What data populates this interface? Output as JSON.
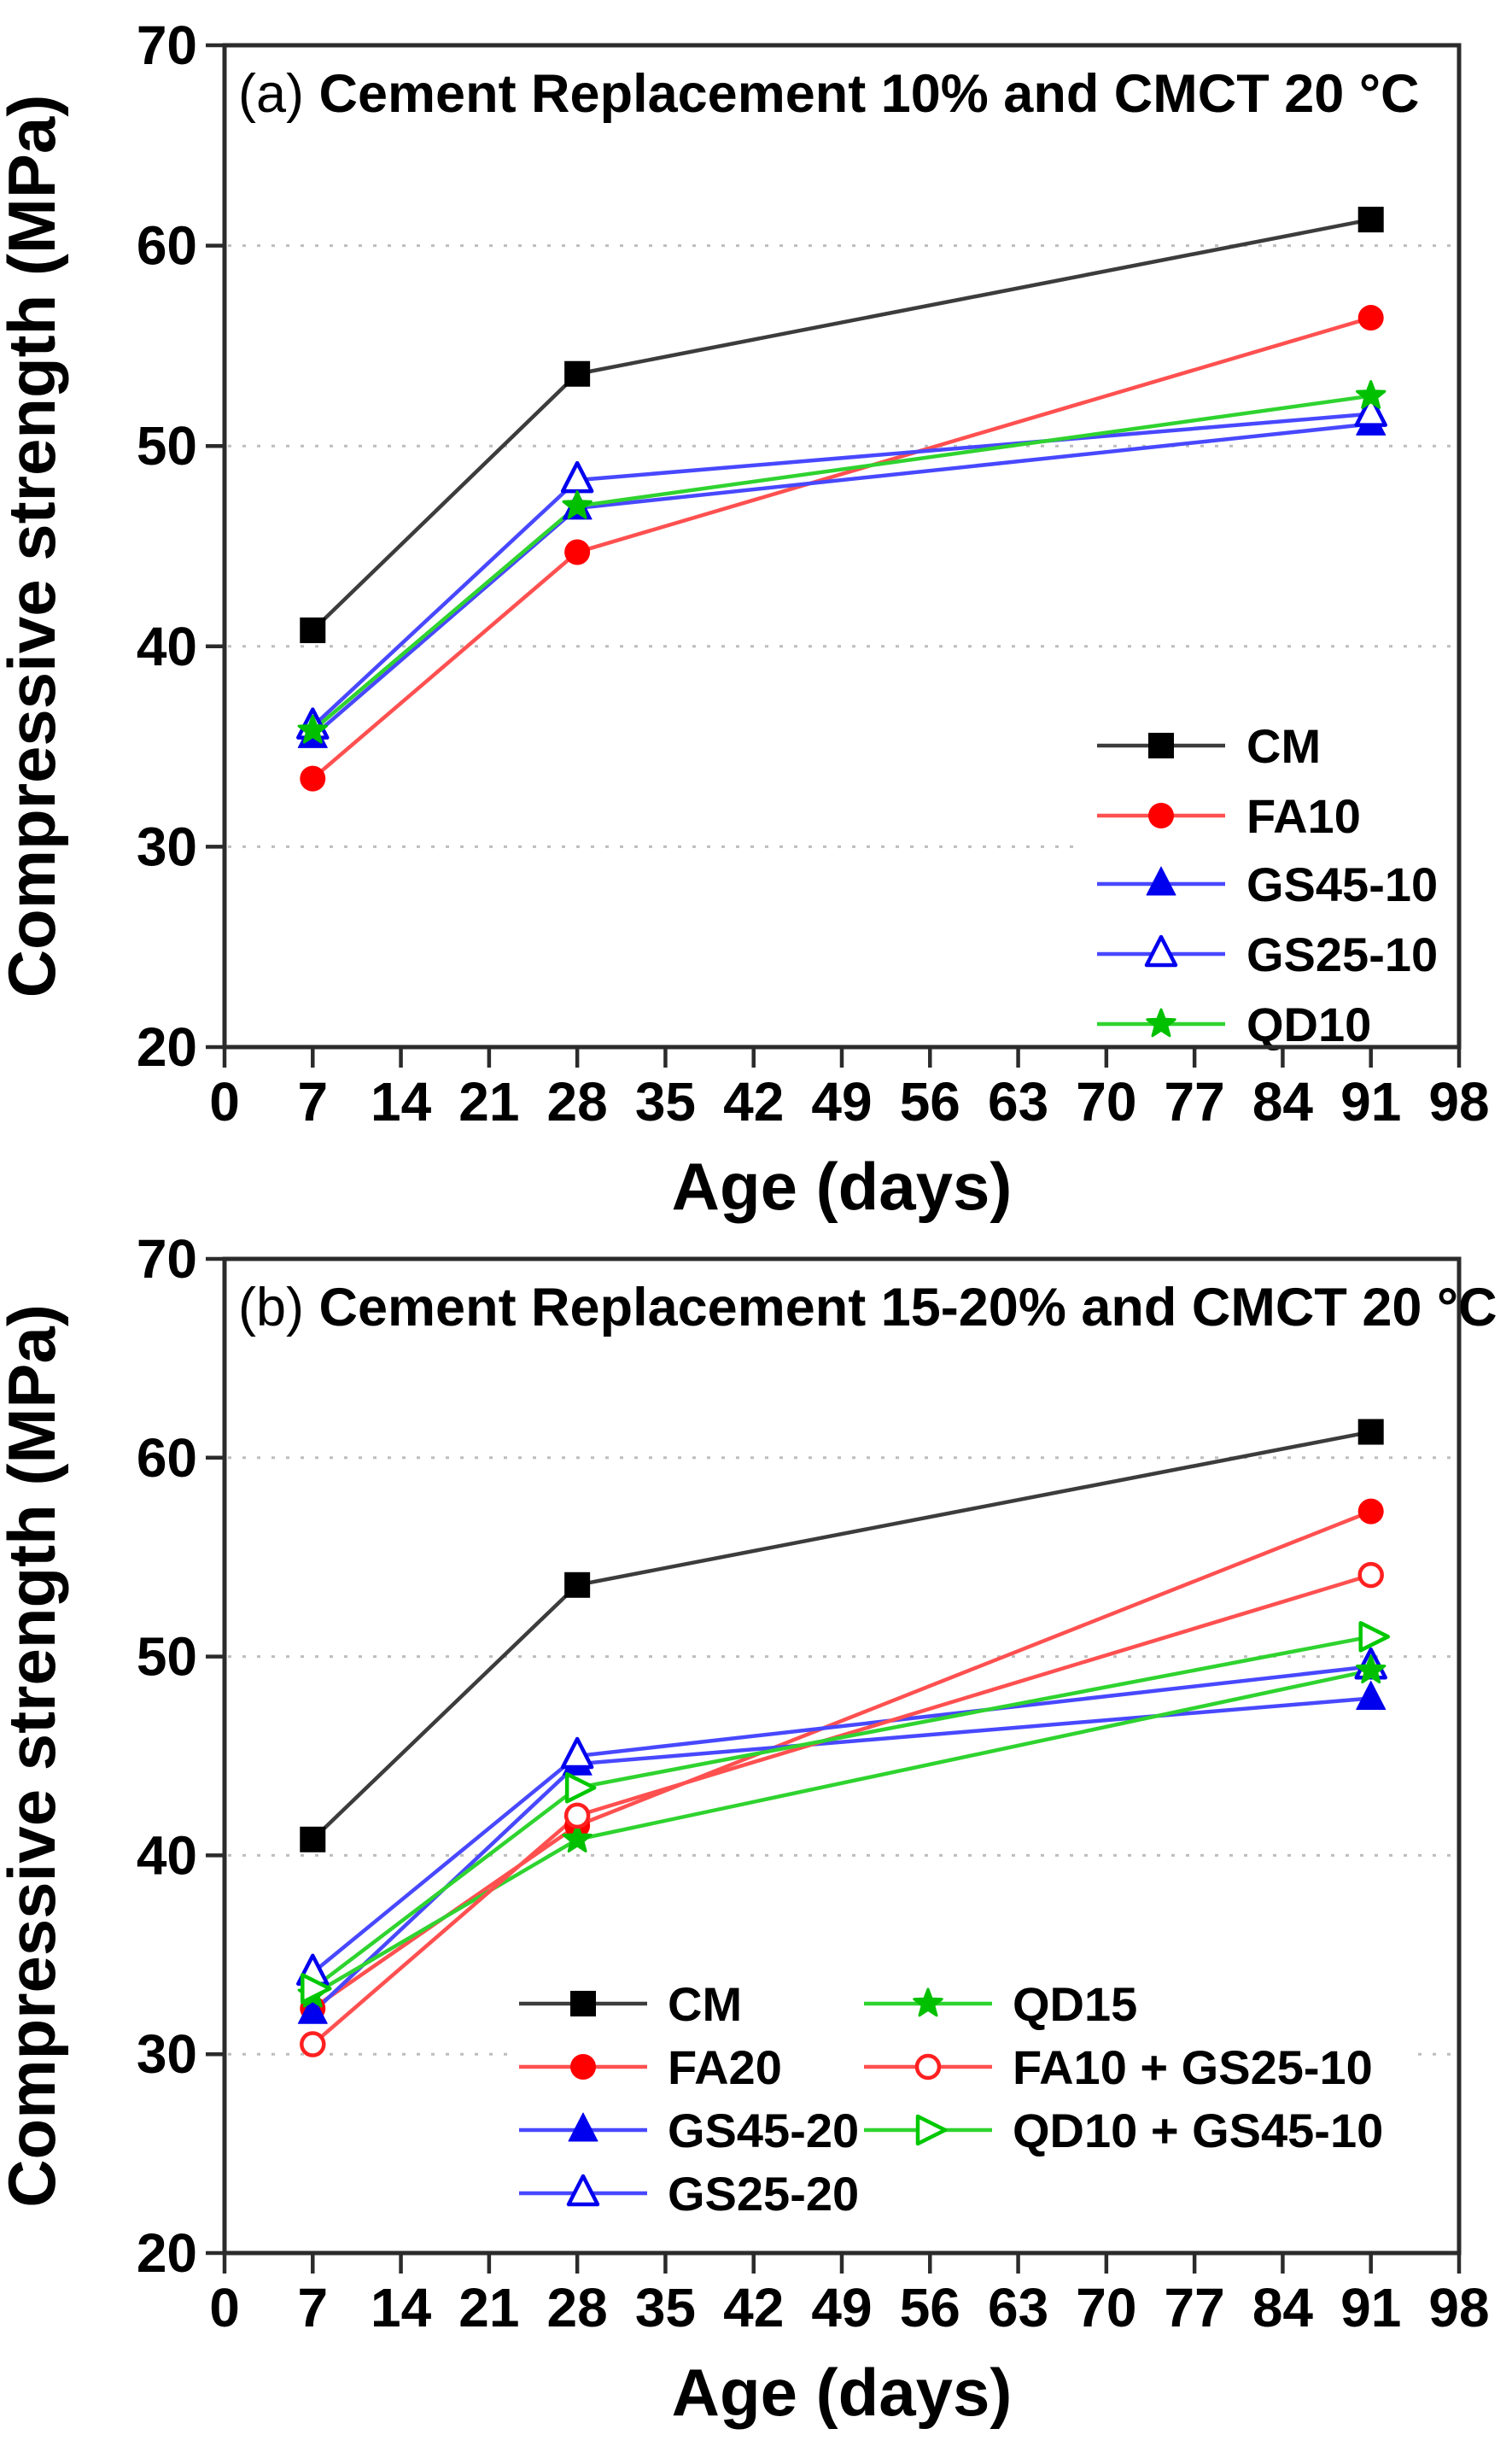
{
  "figure": {
    "background": "#ffffff",
    "frame_color": "#2b2b2b",
    "grid_color": "#bdbdbd",
    "text_color": "#000000"
  },
  "chart_data": [
    {
      "type": "line",
      "panel_label": "(a)",
      "title": "Cement Replacement 10% and CMCT 20 °C",
      "xlabel": "Age (days)",
      "ylabel": "Compressive strength (MPa)",
      "x": [
        7,
        28,
        91
      ],
      "xlim": [
        0,
        98
      ],
      "xticks": [
        0,
        7,
        14,
        21,
        28,
        35,
        42,
        49,
        56,
        63,
        70,
        77,
        84,
        91,
        98
      ],
      "ylim": [
        20,
        70
      ],
      "yticks": [
        20,
        30,
        40,
        50,
        60,
        70
      ],
      "grid": "horizontal-dotted",
      "legend_position": "right-center",
      "series": [
        {
          "name": "CM",
          "marker": "square",
          "fill": "filled",
          "color": "#000000",
          "line_color": "#3c3c3c",
          "values": [
            40.8,
            53.6,
            61.3
          ]
        },
        {
          "name": "FA10",
          "marker": "circle",
          "fill": "filled",
          "color": "#ff0000",
          "line_color": "#ff5050",
          "values": [
            33.4,
            44.7,
            56.4
          ]
        },
        {
          "name": "GS45-10",
          "marker": "triangle-up",
          "fill": "filled",
          "color": "#0000ee",
          "line_color": "#4848ff",
          "values": [
            35.5,
            46.9,
            51.1
          ]
        },
        {
          "name": "GS25-10",
          "marker": "triangle-up",
          "fill": "open",
          "color": "#0000ee",
          "line_color": "#4848ff",
          "values": [
            36.0,
            48.3,
            51.6
          ]
        },
        {
          "name": "QD10",
          "marker": "star",
          "fill": "filled",
          "color": "#00c000",
          "line_color": "#2fd32f",
          "values": [
            35.8,
            47.0,
            52.5
          ]
        }
      ]
    },
    {
      "type": "line",
      "panel_label": "(b)",
      "title": "Cement Replacement 15-20% and CMCT 20 °C",
      "xlabel": "Age (days)",
      "ylabel": "Compressive strength (MPa)",
      "x": [
        7,
        28,
        91
      ],
      "xlim": [
        0,
        98
      ],
      "xticks": [
        0,
        7,
        14,
        21,
        28,
        35,
        42,
        49,
        56,
        63,
        70,
        77,
        84,
        91,
        98
      ],
      "ylim": [
        20,
        70
      ],
      "yticks": [
        20,
        30,
        40,
        50,
        60,
        70
      ],
      "grid": "horizontal-dotted",
      "legend_position": "bottom-center-two-columns",
      "legend_column_split": [
        4,
        3
      ],
      "series": [
        {
          "name": "CM",
          "marker": "square",
          "fill": "filled",
          "color": "#000000",
          "line_color": "#3c3c3c",
          "values": [
            40.8,
            53.6,
            61.3
          ]
        },
        {
          "name": "FA20",
          "marker": "circle",
          "fill": "filled",
          "color": "#ff0000",
          "line_color": "#ff5050",
          "values": [
            32.3,
            41.5,
            57.3
          ]
        },
        {
          "name": "GS45-20",
          "marker": "triangle-up",
          "fill": "filled",
          "color": "#0000ee",
          "line_color": "#4848ff",
          "values": [
            32.1,
            44.6,
            47.9
          ]
        },
        {
          "name": "GS25-20",
          "marker": "triangle-up",
          "fill": "open",
          "color": "#0000ee",
          "line_color": "#4848ff",
          "values": [
            34.1,
            45.0,
            49.5
          ]
        },
        {
          "name": "QD15",
          "marker": "star",
          "fill": "filled",
          "color": "#00c000",
          "line_color": "#2fd32f",
          "values": [
            33.0,
            40.8,
            49.3
          ]
        },
        {
          "name": "FA10 + GS25-10",
          "marker": "circle",
          "fill": "open",
          "color": "#ff2020",
          "line_color": "#ff5050",
          "values": [
            30.5,
            42.0,
            54.1
          ]
        },
        {
          "name": "QD10 + GS45-10",
          "marker": "triangle-right",
          "fill": "open",
          "color": "#00c800",
          "line_color": "#2fd32f",
          "values": [
            33.3,
            43.4,
            51.0
          ]
        }
      ]
    }
  ]
}
